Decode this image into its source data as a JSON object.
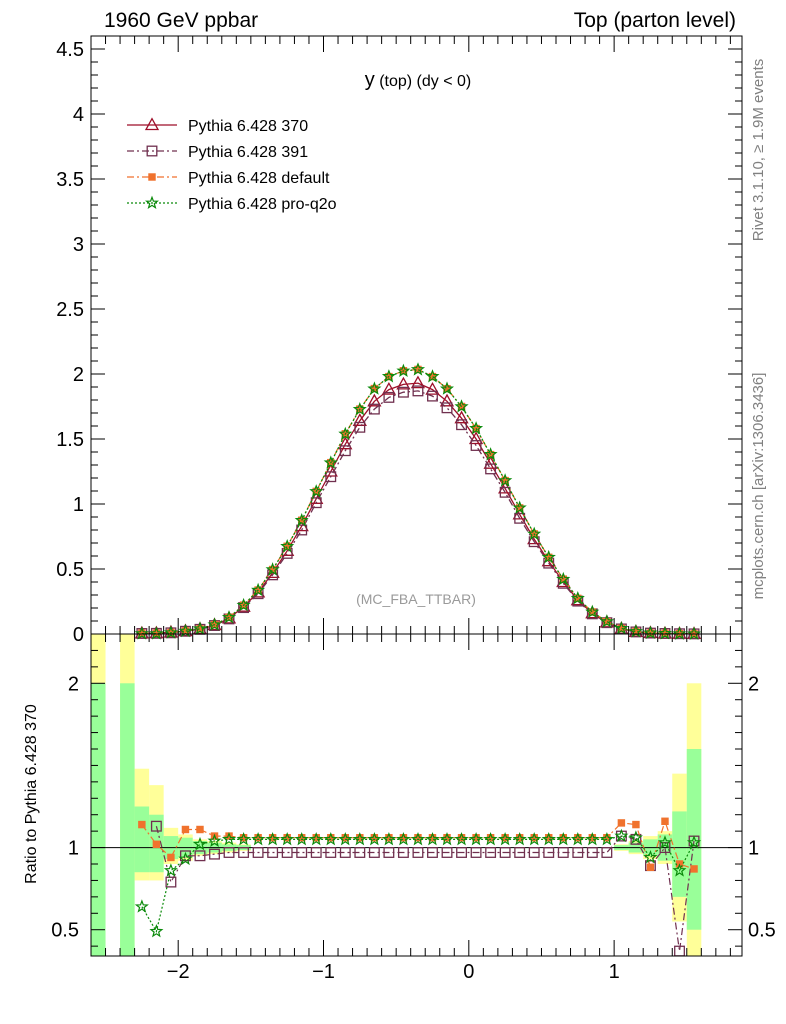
{
  "header": {
    "left": "1960 GeV ppbar",
    "right": "Top (parton level)"
  },
  "side_labels": {
    "rivet": "Rivet 3.1.10, ≥ 1.9M events",
    "mcplots": "mcplots.cern.ch [arXiv:1306.3436]"
  },
  "chart_data": [
    {
      "type": "line",
      "title_main": "y",
      "title_rest": " (top)  (dy < 0)",
      "watermark": "(MC_FBA_TTBAR)",
      "xlim": [
        -2.6,
        1.88
      ],
      "ylim": [
        0,
        4.6
      ],
      "x_ticks": [
        -2,
        -1,
        0,
        1
      ],
      "x_tick_labels": [
        "−2",
        "−1",
        "0",
        "1"
      ],
      "y_ticks": [
        0,
        0.5,
        1,
        1.5,
        2,
        2.5,
        3,
        3.5,
        4,
        4.5
      ],
      "y_tick_labels": [
        "0",
        "0.5",
        "1",
        "1.5",
        "2",
        "2.5",
        "3",
        "3.5",
        "4",
        "4.5"
      ],
      "legend_position": "top-left",
      "x": [
        -2.25,
        -2.15,
        -2.05,
        -1.95,
        -1.85,
        -1.75,
        -1.65,
        -1.55,
        -1.45,
        -1.35,
        -1.25,
        -1.15,
        -1.05,
        -0.95,
        -0.85,
        -0.75,
        -0.65,
        -0.55,
        -0.45,
        -0.35,
        -0.25,
        -0.15,
        -0.05,
        0.05,
        0.15,
        0.25,
        0.35,
        0.45,
        0.55,
        0.65,
        0.75,
        0.85,
        0.95,
        1.05,
        1.15,
        1.25,
        1.35,
        1.45,
        1.55
      ],
      "series": [
        {
          "name": "Pythia 6.428 370",
          "color": "#9e0f29",
          "dash": "solid",
          "marker": "triangle-open",
          "values": [
            0.005,
            0.006,
            0.012,
            0.022,
            0.038,
            0.068,
            0.12,
            0.21,
            0.32,
            0.47,
            0.64,
            0.83,
            1.04,
            1.25,
            1.46,
            1.64,
            1.79,
            1.88,
            1.92,
            1.93,
            1.88,
            1.79,
            1.66,
            1.5,
            1.31,
            1.12,
            0.92,
            0.73,
            0.56,
            0.4,
            0.26,
            0.16,
            0.09,
            0.04,
            0.017,
            0.008,
            0.004,
            0.002,
            0.001
          ]
        },
        {
          "name": "Pythia 6.428 391",
          "color": "#70304f",
          "dash": "dashdot",
          "marker": "square-open",
          "values": [
            0.004,
            0.005,
            0.009,
            0.021,
            0.036,
            0.065,
            0.116,
            0.203,
            0.31,
            0.455,
            0.62,
            0.8,
            1.01,
            1.21,
            1.41,
            1.59,
            1.73,
            1.82,
            1.86,
            1.87,
            1.83,
            1.74,
            1.61,
            1.45,
            1.27,
            1.09,
            0.89,
            0.71,
            0.545,
            0.39,
            0.253,
            0.155,
            0.087,
            0.039,
            0.016,
            0.007,
            0.004,
            0.002,
            0.001
          ]
        },
        {
          "name": "Pythia 6.428 default",
          "color": "#f0722d",
          "dash": "dashdot",
          "marker": "square-filled",
          "values": [
            0.006,
            0.006,
            0.011,
            0.024,
            0.04,
            0.072,
            0.128,
            0.222,
            0.338,
            0.496,
            0.675,
            0.875,
            1.097,
            1.318,
            1.54,
            1.73,
            1.888,
            1.98,
            2.025,
            2.035,
            1.98,
            1.887,
            1.75,
            1.58,
            1.38,
            1.18,
            0.97,
            0.77,
            0.59,
            0.422,
            0.274,
            0.169,
            0.095,
            0.043,
            0.019,
            0.007,
            0.005,
            0.002,
            0.001
          ]
        },
        {
          "name": "Pythia 6.428 pro-q2o",
          "color": "#0a8a0a",
          "dash": "dotted",
          "marker": "star",
          "values": [
            0.003,
            0.003,
            0.01,
            0.022,
            0.04,
            0.071,
            0.127,
            0.221,
            0.337,
            0.495,
            0.674,
            0.874,
            1.096,
            1.317,
            1.538,
            1.728,
            1.886,
            1.981,
            2.023,
            2.034,
            1.981,
            1.886,
            1.749,
            1.581,
            1.381,
            1.18,
            0.97,
            0.769,
            0.59,
            0.421,
            0.274,
            0.169,
            0.095,
            0.043,
            0.019,
            0.008,
            0.004,
            0.002,
            0.001
          ]
        }
      ]
    },
    {
      "type": "line",
      "ylabel": "Ratio to Pythia 6.428 370",
      "ylim": [
        0.34,
        2.3
      ],
      "y_ticks": [
        0.5,
        1,
        2
      ],
      "y_tick_labels": [
        "0.5",
        "1",
        "2"
      ],
      "reference": 1,
      "bands": [
        {
          "name": "yellow",
          "color": "#ffff99"
        },
        {
          "name": "green",
          "color": "#99ff99"
        }
      ],
      "band_x": [
        -2.55,
        -2.35,
        -2.25,
        -2.15,
        -2.05,
        -1.95,
        -1.85,
        -1.75,
        -1.65,
        -1.55,
        1.05,
        1.15,
        1.25,
        1.35,
        1.45,
        1.55
      ],
      "band_yellow": [
        [
          0.34,
          2.3
        ],
        [
          0.34,
          2.3
        ],
        [
          0.8,
          1.48
        ],
        [
          0.8,
          1.38
        ],
        [
          0.9,
          1.12
        ],
        [
          0.92,
          1.08
        ],
        [
          0.95,
          1.05
        ],
        [
          0.96,
          1.04
        ],
        [
          0.97,
          1.03
        ],
        [
          0.98,
          1.02
        ],
        [
          0.98,
          1.02
        ],
        [
          0.96,
          1.04
        ],
        [
          0.93,
          1.07
        ],
        [
          0.9,
          1.1
        ],
        [
          0.55,
          1.45
        ],
        [
          0.34,
          2.0
        ]
      ],
      "band_green": [
        [
          0.34,
          2.0
        ],
        [
          0.34,
          2.0
        ],
        [
          0.85,
          1.25
        ],
        [
          0.85,
          1.2
        ],
        [
          0.93,
          1.07
        ],
        [
          0.94,
          1.06
        ],
        [
          0.96,
          1.04
        ],
        [
          0.97,
          1.03
        ],
        [
          0.98,
          1.02
        ],
        [
          0.985,
          1.015
        ],
        [
          0.985,
          1.015
        ],
        [
          0.97,
          1.03
        ],
        [
          0.95,
          1.05
        ],
        [
          0.92,
          1.08
        ],
        [
          0.7,
          1.22
        ],
        [
          0.5,
          1.6
        ]
      ],
      "x": [
        -2.25,
        -2.15,
        -2.05,
        -1.95,
        -1.85,
        -1.75,
        -1.65,
        -1.55,
        -1.45,
        -1.35,
        -1.25,
        -1.15,
        -1.05,
        -0.95,
        -0.85,
        -0.75,
        -0.65,
        -0.55,
        -0.45,
        -0.35,
        -0.25,
        -0.15,
        -0.05,
        0.05,
        0.15,
        0.25,
        0.35,
        0.45,
        0.55,
        0.65,
        0.75,
        0.85,
        0.95,
        1.05,
        1.15,
        1.25,
        1.35,
        1.45,
        1.55
      ],
      "series": [
        {
          "name": "Pythia 6.428 391",
          "color": "#70304f",
          "dash": "dashdot",
          "marker": "square-open",
          "values": [
            null,
            1.13,
            0.79,
            0.95,
            0.95,
            0.96,
            0.97,
            0.97,
            0.97,
            0.97,
            0.97,
            0.97,
            0.97,
            0.97,
            0.97,
            0.97,
            0.97,
            0.97,
            0.97,
            0.97,
            0.97,
            0.97,
            0.97,
            0.97,
            0.97,
            0.97,
            0.97,
            0.97,
            0.97,
            0.97,
            0.97,
            0.97,
            0.97,
            1.07,
            1.05,
            0.89,
            1.0,
            0.37,
            1.04
          ]
        },
        {
          "name": "Pythia 6.428 default",
          "color": "#f0722d",
          "dash": "dashdot",
          "marker": "square-filled",
          "values": [
            1.14,
            1.02,
            0.94,
            1.11,
            1.11,
            1.07,
            1.07,
            1.06,
            1.06,
            1.06,
            1.06,
            1.06,
            1.06,
            1.06,
            1.06,
            1.06,
            1.06,
            1.06,
            1.06,
            1.06,
            1.06,
            1.06,
            1.06,
            1.06,
            1.06,
            1.06,
            1.06,
            1.06,
            1.06,
            1.06,
            1.06,
            1.06,
            1.06,
            1.15,
            1.14,
            0.88,
            1.16,
            0.9,
            0.87
          ]
        },
        {
          "name": "Pythia 6.428 pro-q2o",
          "color": "#0a8a0a",
          "dash": "dotted",
          "marker": "star",
          "values": [
            0.64,
            0.49,
            0.86,
            0.93,
            1.02,
            1.04,
            1.05,
            1.05,
            1.05,
            1.05,
            1.05,
            1.05,
            1.05,
            1.05,
            1.05,
            1.05,
            1.05,
            1.05,
            1.05,
            1.05,
            1.05,
            1.05,
            1.05,
            1.05,
            1.05,
            1.05,
            1.05,
            1.05,
            1.05,
            1.05,
            1.05,
            1.05,
            1.05,
            1.07,
            1.06,
            0.94,
            1.03,
            0.86,
            1.03
          ]
        }
      ]
    }
  ]
}
